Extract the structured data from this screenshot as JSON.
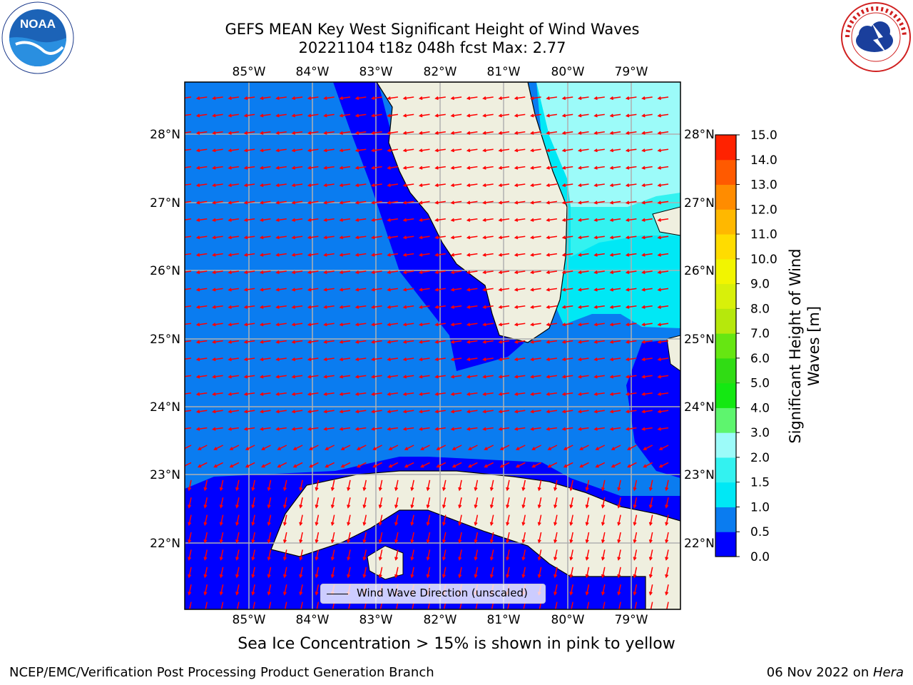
{
  "title_line1": "GEFS MEAN Key West Significant Height of Wind Waves",
  "title_line2": "20221104 t18z 048h fcst   Max: 2.77",
  "lon_ticks": [
    "85°W",
    "84°W",
    "83°W",
    "82°W",
    "81°W",
    "80°W",
    "79°W"
  ],
  "lat_ticks": [
    "28°N",
    "27°N",
    "26°N",
    "25°N",
    "24°N",
    "23°N",
    "22°N"
  ],
  "legend_label": "Wind Wave Direction (unscaled)",
  "colorbar": {
    "label": "Significant Height of Wind Waves [m]",
    "ticks": [
      "0.0",
      "0.5",
      "1.0",
      "1.5",
      "2.0",
      "3.0",
      "4.0",
      "5.0",
      "6.0",
      "7.0",
      "8.0",
      "9.0",
      "10.0",
      "11.0",
      "12.0",
      "13.0",
      "14.0",
      "15.0"
    ],
    "colors": [
      "#0000ff",
      "#0a7cf0",
      "#00e8f5",
      "#33f2f0",
      "#9cfbf9",
      "#5ef56e",
      "#14e812",
      "#30dc14",
      "#66e612",
      "#b6e80c",
      "#d8f00a",
      "#f2f500",
      "#ffdc00",
      "#ffb800",
      "#ff8c00",
      "#ff5a00",
      "#ff2200"
    ]
  },
  "sea_ice_note": "Sea Ice Concentration > 15% is shown in pink to yellow",
  "credit": "NCEP/EMC/Verification Post Processing Product Generation Branch",
  "date_text": "06 Nov 2022 on ",
  "host_text": "Hera",
  "logos": {
    "left": "noaa-logo",
    "right": "nws-logo",
    "left_text": "NOAA"
  }
}
